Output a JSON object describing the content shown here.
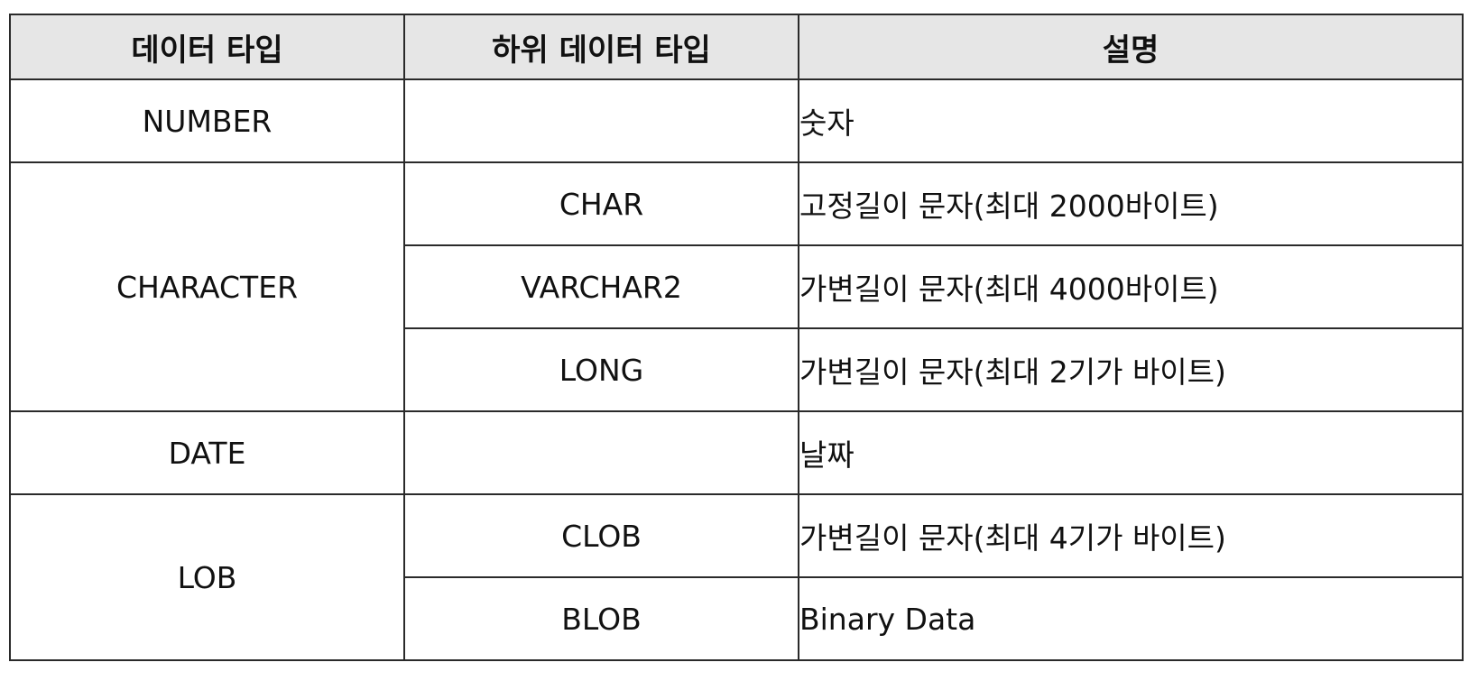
{
  "table": {
    "headers": [
      "데이터 타입",
      "하위 데이터 타입",
      "설명"
    ],
    "rows": [
      {
        "type": "NUMBER",
        "subtype": "",
        "description": "숫자"
      },
      {
        "type": "CHARACTER",
        "subtype": "CHAR",
        "description": "고정길이 문자(최대 2000바이트)"
      },
      {
        "type": "",
        "subtype": "VARCHAR2",
        "description": "가변길이 문자(최대 4000바이트)"
      },
      {
        "type": "",
        "subtype": "LONG",
        "description": "가변길이 문자(최대 2기가 바이트)"
      },
      {
        "type": "DATE",
        "subtype": "",
        "description": "날짜"
      },
      {
        "type": "LOB",
        "subtype": "CLOB",
        "description": "가변길이 문자(최대 4기가 바이트)"
      },
      {
        "type": "",
        "subtype": "BLOB",
        "description": "Binary Data"
      }
    ]
  },
  "colors": {
    "header_background": "#e6e6e6",
    "border": "#2a2a2a"
  }
}
